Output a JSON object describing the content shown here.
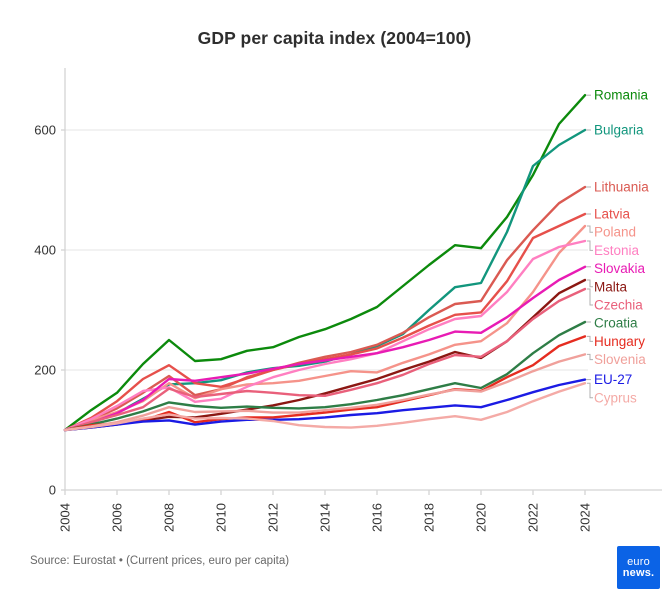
{
  "footer": {
    "source": "Source: Eurostat • (Current prices, euro per capita)",
    "logo": {
      "line1": "euro",
      "line2": "news.",
      "color": "#0b63e6"
    }
  },
  "chart_data": {
    "type": "line",
    "title": "GDP per capita index (2004=100)",
    "xlabel": "",
    "ylabel": "",
    "x": [
      2004,
      2005,
      2006,
      2007,
      2008,
      2009,
      2010,
      2011,
      2012,
      2013,
      2014,
      2015,
      2016,
      2017,
      2018,
      2019,
      2020,
      2021,
      2022,
      2023,
      2024
    ],
    "x_tick_labels": [
      "2004",
      "2006",
      "2008",
      "2010",
      "2012",
      "2014",
      "2016",
      "2018",
      "2020",
      "2022",
      "2024"
    ],
    "y_ticks": [
      0,
      200,
      400,
      600
    ],
    "ylim": [
      0,
      700
    ],
    "grid": true,
    "legend_position": "right-end-labels",
    "colors": {
      "grid": "#ebebeb",
      "axis": "#d4d4d4",
      "tick_label": "#333333",
      "leader": "#b0b0b0"
    },
    "series": [
      {
        "name": "Romania",
        "color": "#0c8a0c",
        "values": [
          100,
          133,
          162,
          210,
          250,
          215,
          218,
          232,
          238,
          255,
          268,
          285,
          305,
          340,
          375,
          408,
          403,
          455,
          525,
          610,
          658
        ]
      },
      {
        "name": "Bulgaria",
        "color": "#12967d",
        "values": [
          100,
          112,
          128,
          152,
          176,
          178,
          183,
          196,
          203,
          207,
          214,
          226,
          240,
          260,
          300,
          338,
          345,
          430,
          540,
          575,
          600
        ]
      },
      {
        "name": "Lithuania",
        "color": "#da5a52",
        "values": [
          100,
          117,
          136,
          162,
          190,
          158,
          168,
          188,
          200,
          212,
          222,
          230,
          242,
          262,
          288,
          310,
          315,
          383,
          433,
          478,
          505
        ]
      },
      {
        "name": "Latvia",
        "color": "#e6504b",
        "values": [
          100,
          120,
          148,
          185,
          208,
          178,
          172,
          186,
          200,
          210,
          218,
          226,
          236,
          254,
          274,
          292,
          296,
          348,
          420,
          440,
          460
        ]
      },
      {
        "name": "Poland",
        "color": "#f5938a",
        "values": [
          100,
          116,
          130,
          148,
          178,
          153,
          168,
          176,
          178,
          182,
          190,
          198,
          196,
          212,
          226,
          242,
          248,
          278,
          330,
          395,
          440
        ]
      },
      {
        "name": "Estonia",
        "color": "#ff7fc1",
        "values": [
          100,
          118,
          140,
          165,
          171,
          147,
          152,
          172,
          188,
          200,
          210,
          218,
          228,
          248,
          268,
          285,
          290,
          330,
          385,
          405,
          415
        ]
      },
      {
        "name": "Slovakia",
        "color": "#e81bb4",
        "values": [
          100,
          112,
          128,
          150,
          185,
          182,
          188,
          194,
          202,
          210,
          216,
          222,
          228,
          238,
          250,
          264,
          262,
          288,
          320,
          350,
          372
        ]
      },
      {
        "name": "Malta",
        "color": "#8b1712",
        "values": [
          100,
          104,
          109,
          116,
          122,
          121,
          127,
          134,
          141,
          150,
          161,
          173,
          185,
          200,
          214,
          230,
          220,
          248,
          288,
          328,
          350
        ]
      },
      {
        "name": "Czechia",
        "color": "#e9607b",
        "values": [
          100,
          113,
          125,
          138,
          169,
          155,
          160,
          165,
          162,
          158,
          157,
          167,
          178,
          192,
          210,
          225,
          222,
          248,
          285,
          315,
          335
        ]
      },
      {
        "name": "Croatia",
        "color": "#2e7d46",
        "values": [
          100,
          109,
          119,
          131,
          146,
          140,
          137,
          139,
          137,
          136,
          138,
          143,
          150,
          158,
          168,
          178,
          170,
          193,
          228,
          258,
          280
        ]
      },
      {
        "name": "Hungary",
        "color": "#e52c20",
        "values": [
          100,
          108,
          111,
          116,
          130,
          113,
          118,
          121,
          121,
          125,
          129,
          134,
          138,
          148,
          158,
          168,
          165,
          188,
          208,
          240,
          256
        ]
      },
      {
        "name": "Slovenia",
        "color": "#f0a09b",
        "values": [
          100,
          106,
          113,
          124,
          138,
          130,
          131,
          132,
          129,
          129,
          133,
          137,
          142,
          150,
          159,
          167,
          164,
          180,
          198,
          214,
          226
        ]
      },
      {
        "name": "EU-27",
        "color": "#1b1be4",
        "values": [
          100,
          104,
          109,
          114,
          116,
          109,
          114,
          117,
          117,
          118,
          121,
          125,
          128,
          133,
          137,
          141,
          138,
          150,
          163,
          175,
          184
        ]
      },
      {
        "name": "Cyprus",
        "color": "#f4aaa6",
        "values": [
          100,
          105,
          111,
          119,
          126,
          119,
          120,
          119,
          115,
          108,
          105,
          104,
          107,
          112,
          118,
          123,
          117,
          130,
          148,
          164,
          178
        ]
      }
    ]
  }
}
